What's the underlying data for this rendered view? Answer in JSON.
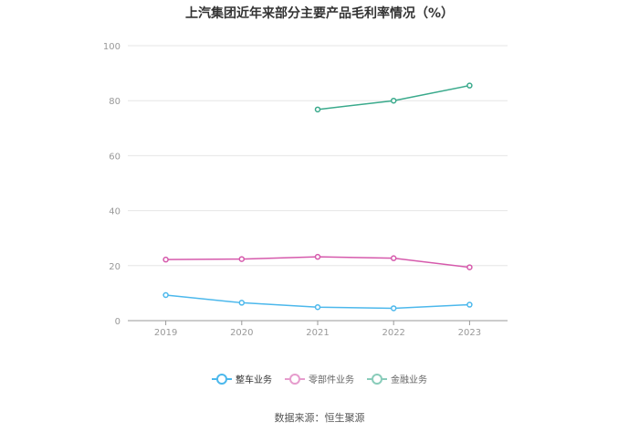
{
  "title": "上汽集团近年来部分主要产品毛利率情况（%）",
  "source": "数据来源：恒生聚源",
  "chart_data": {
    "type": "line",
    "title": "上汽集团近年来部分主要产品毛利率情况（%）",
    "x": [
      "2019",
      "2020",
      "2021",
      "2022",
      "2023"
    ],
    "ylim": [
      0,
      100
    ],
    "yticks": [
      0,
      20,
      40,
      60,
      80,
      100
    ],
    "grid": true,
    "legend_position": "bottom",
    "series": [
      {
        "name": "整车业务",
        "color": "#4cb8ec",
        "values": [
          9.3,
          6.5,
          4.9,
          4.5,
          5.8
        ]
      },
      {
        "name": "零部件业务",
        "color": "#d65aac",
        "values": [
          22.2,
          22.4,
          23.2,
          22.7,
          19.4
        ]
      },
      {
        "name": "金融业务",
        "color": "#3aaa8c",
        "values": [
          null,
          null,
          76.8,
          80.0,
          85.5
        ]
      }
    ]
  }
}
